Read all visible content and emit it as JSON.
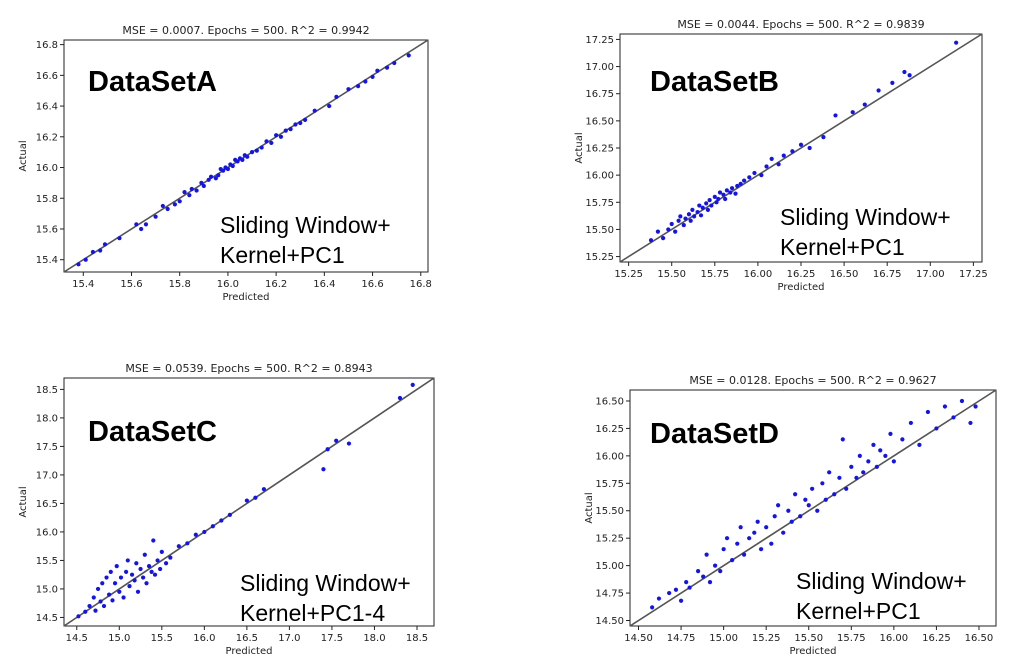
{
  "colors": {
    "points": "#1414e6",
    "line": "#555555",
    "frame": "#222222"
  },
  "chart_data": [
    {
      "type": "scatter",
      "title": "MSE = 0.0007.  Epochs = 500.  R^2 = 0.9942",
      "xlabel": "Predicted",
      "ylabel": "Actual",
      "dataset_label": "DataSetA",
      "method_line1": "Sliding Window+",
      "method_line2": "Kernel+PC1",
      "xlim": [
        15.32,
        16.83
      ],
      "ylim": [
        15.32,
        16.83
      ],
      "xticks": [
        "15.4",
        "15.6",
        "15.8",
        "16.0",
        "16.2",
        "16.4",
        "16.6",
        "16.8"
      ],
      "yticks": [
        "15.4",
        "15.6",
        "15.8",
        "16.0",
        "16.2",
        "16.4",
        "16.6",
        "16.8"
      ],
      "x": [
        15.38,
        15.41,
        15.44,
        15.47,
        15.49,
        15.55,
        15.62,
        15.64,
        15.66,
        15.7,
        15.73,
        15.75,
        15.78,
        15.8,
        15.82,
        15.84,
        15.85,
        15.87,
        15.89,
        15.9,
        15.92,
        15.93,
        15.95,
        15.96,
        15.97,
        15.98,
        15.99,
        16.0,
        16.01,
        16.02,
        16.03,
        16.04,
        16.05,
        16.06,
        16.07,
        16.08,
        16.1,
        16.12,
        16.14,
        16.16,
        16.18,
        16.2,
        16.22,
        16.24,
        16.26,
        16.28,
        16.3,
        16.32,
        16.36,
        16.42,
        16.45,
        16.5,
        16.54,
        16.57,
        16.6,
        16.62,
        16.66,
        16.69,
        16.75
      ],
      "y": [
        15.37,
        15.4,
        15.45,
        15.46,
        15.5,
        15.54,
        15.63,
        15.6,
        15.63,
        15.68,
        15.75,
        15.73,
        15.76,
        15.78,
        15.84,
        15.82,
        15.86,
        15.85,
        15.9,
        15.88,
        15.92,
        15.94,
        15.93,
        15.95,
        15.99,
        15.98,
        16.0,
        15.99,
        16.02,
        16.01,
        16.05,
        16.04,
        16.06,
        16.05,
        16.08,
        16.07,
        16.1,
        16.11,
        16.13,
        16.17,
        16.16,
        16.21,
        16.2,
        16.24,
        16.25,
        16.28,
        16.29,
        16.31,
        16.37,
        16.4,
        16.46,
        16.51,
        16.53,
        16.56,
        16.59,
        16.63,
        16.65,
        16.68,
        16.73
      ]
    },
    {
      "type": "scatter",
      "title": "MSE = 0.0044.  Epochs = 500.  R^2 = 0.9839",
      "xlabel": "Predicted",
      "ylabel": "Actual",
      "dataset_label": "DataSetB",
      "method_line1": "Sliding Window+",
      "method_line2": "Kernel+PC1",
      "xlim": [
        15.2,
        17.3
      ],
      "ylim": [
        15.2,
        17.3
      ],
      "xticks": [
        "15.25",
        "15.50",
        "15.75",
        "16.00",
        "16.25",
        "16.50",
        "16.75",
        "17.00",
        "17.25"
      ],
      "yticks": [
        "15.25",
        "15.50",
        "15.75",
        "16.00",
        "16.25",
        "16.50",
        "16.75",
        "17.00",
        "17.25"
      ],
      "x": [
        15.38,
        15.42,
        15.45,
        15.48,
        15.5,
        15.52,
        15.54,
        15.55,
        15.57,
        15.58,
        15.6,
        15.61,
        15.62,
        15.63,
        15.65,
        15.66,
        15.67,
        15.68,
        15.7,
        15.71,
        15.72,
        15.73,
        15.75,
        15.76,
        15.77,
        15.78,
        15.8,
        15.81,
        15.82,
        15.84,
        15.85,
        15.87,
        15.88,
        15.9,
        15.92,
        15.95,
        15.98,
        16.02,
        16.05,
        16.08,
        16.12,
        16.15,
        16.2,
        16.25,
        16.3,
        16.38,
        16.45,
        16.55,
        16.62,
        16.7,
        16.78,
        16.85,
        16.88,
        17.15
      ],
      "y": [
        15.4,
        15.48,
        15.42,
        15.5,
        15.55,
        15.48,
        15.58,
        15.62,
        15.54,
        15.6,
        15.64,
        15.58,
        15.68,
        15.62,
        15.66,
        15.72,
        15.63,
        15.7,
        15.74,
        15.68,
        15.77,
        15.72,
        15.8,
        15.75,
        15.78,
        15.84,
        15.82,
        15.78,
        15.86,
        15.84,
        15.88,
        15.83,
        15.9,
        15.92,
        15.95,
        15.98,
        16.02,
        16.0,
        16.08,
        16.15,
        16.1,
        16.18,
        16.22,
        16.28,
        16.25,
        16.35,
        16.55,
        16.58,
        16.65,
        16.78,
        16.85,
        16.95,
        16.92,
        17.22
      ]
    },
    {
      "type": "scatter",
      "title": "MSE = 0.0539.  Epochs = 500.  R^2 = 0.8943",
      "xlabel": "Predicted",
      "ylabel": "Actual",
      "dataset_label": "DataSetC",
      "method_line1": "Sliding Window+",
      "method_line2": "Kernel+PC1-4",
      "xlim": [
        14.35,
        18.7
      ],
      "ylim": [
        14.35,
        18.7
      ],
      "xticks": [
        "14.5",
        "15.0",
        "15.5",
        "16.0",
        "16.5",
        "17.0",
        "17.5",
        "18.0",
        "18.5"
      ],
      "yticks": [
        "14.5",
        "15.0",
        "15.5",
        "16.0",
        "16.5",
        "17.0",
        "17.5",
        "18.0",
        "18.5"
      ],
      "x": [
        14.52,
        14.6,
        14.65,
        14.7,
        14.72,
        14.75,
        14.78,
        14.8,
        14.82,
        14.85,
        14.88,
        14.9,
        14.92,
        14.95,
        14.97,
        15.0,
        15.02,
        15.05,
        15.08,
        15.1,
        15.12,
        15.15,
        15.18,
        15.2,
        15.22,
        15.25,
        15.28,
        15.3,
        15.32,
        15.35,
        15.38,
        15.4,
        15.42,
        15.45,
        15.48,
        15.5,
        15.55,
        15.6,
        15.7,
        15.8,
        15.9,
        16.0,
        16.1,
        16.2,
        16.3,
        16.5,
        16.6,
        16.7,
        17.4,
        17.45,
        17.55,
        17.7,
        18.3,
        18.45
      ],
      "y": [
        14.52,
        14.6,
        14.7,
        14.85,
        14.62,
        15.0,
        14.78,
        15.1,
        14.7,
        15.2,
        14.9,
        15.3,
        14.8,
        15.1,
        15.4,
        14.95,
        15.2,
        14.85,
        15.3,
        15.5,
        15.05,
        15.25,
        15.15,
        15.45,
        14.95,
        15.35,
        15.2,
        15.6,
        15.1,
        15.4,
        15.3,
        15.85,
        15.25,
        15.5,
        15.35,
        15.65,
        15.45,
        15.55,
        15.75,
        15.8,
        15.95,
        16.0,
        16.1,
        16.2,
        16.3,
        16.55,
        16.6,
        16.75,
        17.1,
        17.45,
        17.6,
        17.55,
        18.35,
        18.58
      ]
    },
    {
      "type": "scatter",
      "title": "MSE = 0.0128.  Epochs = 500.  R^2 = 0.9627",
      "xlabel": "Predicted",
      "ylabel": "Actual",
      "dataset_label": "DataSetD",
      "method_line1": "Sliding Window+",
      "method_line2": "Kernel+PC1",
      "xlim": [
        14.45,
        16.6
      ],
      "ylim": [
        14.45,
        16.6
      ],
      "xticks": [
        "14.50",
        "14.75",
        "15.00",
        "15.25",
        "15.50",
        "15.75",
        "16.00",
        "16.25",
        "16.50"
      ],
      "yticks": [
        "14.50",
        "14.75",
        "15.00",
        "15.25",
        "15.50",
        "15.75",
        "16.00",
        "16.25",
        "16.50"
      ],
      "x": [
        14.58,
        14.62,
        14.68,
        14.72,
        14.75,
        14.78,
        14.8,
        14.85,
        14.88,
        14.9,
        14.92,
        14.95,
        14.98,
        15.0,
        15.02,
        15.05,
        15.08,
        15.1,
        15.12,
        15.15,
        15.18,
        15.2,
        15.22,
        15.25,
        15.28,
        15.3,
        15.32,
        15.35,
        15.38,
        15.4,
        15.42,
        15.45,
        15.48,
        15.5,
        15.52,
        15.55,
        15.58,
        15.6,
        15.62,
        15.65,
        15.68,
        15.7,
        15.72,
        15.75,
        15.78,
        15.8,
        15.82,
        15.85,
        15.88,
        15.9,
        15.92,
        15.95,
        15.98,
        16.0,
        16.05,
        16.1,
        16.15,
        16.2,
        16.25,
        16.3,
        16.35,
        16.4,
        16.45,
        16.48
      ],
      "y": [
        14.62,
        14.7,
        14.75,
        14.78,
        14.68,
        14.85,
        14.8,
        14.95,
        14.9,
        15.1,
        14.85,
        15.0,
        14.95,
        15.15,
        15.25,
        15.05,
        15.2,
        15.35,
        15.1,
        15.25,
        15.3,
        15.4,
        15.15,
        15.35,
        15.2,
        15.45,
        15.55,
        15.3,
        15.5,
        15.4,
        15.65,
        15.45,
        15.6,
        15.55,
        15.7,
        15.5,
        15.75,
        15.6,
        15.85,
        15.65,
        15.8,
        16.15,
        15.7,
        15.9,
        15.8,
        16.0,
        15.85,
        15.95,
        16.1,
        15.9,
        16.05,
        16.0,
        16.2,
        15.95,
        16.15,
        16.3,
        16.1,
        16.4,
        16.25,
        16.45,
        16.35,
        16.5,
        16.3,
        16.45
      ]
    }
  ]
}
